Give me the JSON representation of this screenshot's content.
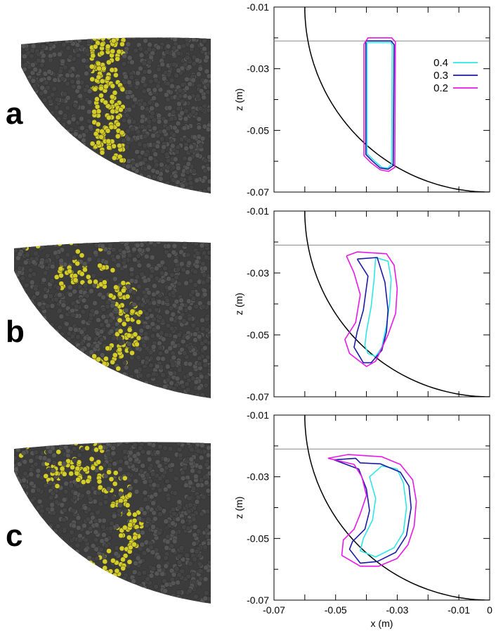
{
  "figure": {
    "panel_letters": [
      "a",
      "b",
      "c"
    ],
    "particle_colors": {
      "bed": "#4a4a4a",
      "tracer": "#d4cc28"
    }
  },
  "colors": {
    "c04": "#2ee6e6",
    "c03": "#1a1aa6",
    "c02": "#e619e6",
    "axis": "#000000",
    "surface": "#888888"
  },
  "chart_data": [
    {
      "type": "line",
      "panel": "a",
      "xlabel": "",
      "ylabel": "z (m)",
      "xlim": [
        -0.07,
        0
      ],
      "ylim": [
        -0.07,
        -0.01
      ],
      "yticks": [
        "-0.01",
        "-0.03",
        "-0.05",
        "-0.07"
      ],
      "xticks": [],
      "legend": [
        {
          "label": "0.4",
          "color": "#2ee6e6"
        },
        {
          "label": "0.3",
          "color": "#1a1aa6"
        },
        {
          "label": "0.2",
          "color": "#e619e6"
        }
      ],
      "legend_position": "top-right",
      "surface_z": -0.021,
      "drum_circle": {
        "center": [
          0,
          -0.01
        ],
        "radius": 0.06
      },
      "series": [
        {
          "name": "0.4",
          "color": "#2ee6e6",
          "x": [
            -0.0398,
            -0.032,
            -0.0316,
            -0.0318,
            -0.033,
            -0.035,
            -0.0375,
            -0.0398,
            -0.0398
          ],
          "z": [
            -0.0215,
            -0.0215,
            -0.0225,
            -0.061,
            -0.0622,
            -0.062,
            -0.0598,
            -0.0575,
            -0.0215
          ]
        },
        {
          "name": "0.3",
          "color": "#1a1aa6",
          "x": [
            -0.0402,
            -0.032,
            -0.031,
            -0.0313,
            -0.033,
            -0.0355,
            -0.038,
            -0.0402,
            -0.0402
          ],
          "z": [
            -0.021,
            -0.021,
            -0.0222,
            -0.0614,
            -0.0626,
            -0.0622,
            -0.06,
            -0.0578,
            -0.021
          ]
        },
        {
          "name": "0.2",
          "color": "#e619e6",
          "x": [
            -0.0408,
            -0.0395,
            -0.0318,
            -0.0306,
            -0.0308,
            -0.0328,
            -0.0355,
            -0.0385,
            -0.0408,
            -0.0408
          ],
          "z": [
            -0.022,
            -0.02,
            -0.02,
            -0.0213,
            -0.062,
            -0.0633,
            -0.0628,
            -0.0605,
            -0.0582,
            -0.022
          ]
        }
      ]
    },
    {
      "type": "line",
      "panel": "b",
      "xlabel": "",
      "ylabel": "z (m)",
      "xlim": [
        -0.07,
        0
      ],
      "ylim": [
        -0.07,
        -0.01
      ],
      "yticks": [
        "-0.01",
        "-0.03",
        "-0.05",
        "-0.07"
      ],
      "xticks": [],
      "surface_z": -0.021,
      "drum_circle": {
        "center": [
          0,
          -0.01
        ],
        "radius": 0.06
      },
      "series": [
        {
          "name": "0.4",
          "color": "#2ee6e6",
          "x": [
            -0.037,
            -0.033,
            -0.032,
            -0.0325,
            -0.0335,
            -0.035,
            -0.037,
            -0.0395,
            -0.0405,
            -0.04,
            -0.0385,
            -0.0375,
            -0.037
          ],
          "z": [
            -0.025,
            -0.0262,
            -0.032,
            -0.04,
            -0.047,
            -0.054,
            -0.057,
            -0.056,
            -0.0535,
            -0.049,
            -0.041,
            -0.032,
            -0.025
          ]
        },
        {
          "name": "0.3",
          "color": "#1a1aa6",
          "x": [
            -0.043,
            -0.0365,
            -0.034,
            -0.033,
            -0.0335,
            -0.035,
            -0.0385,
            -0.041,
            -0.044,
            -0.043,
            -0.041,
            -0.0395,
            -0.043
          ],
          "z": [
            -0.0255,
            -0.025,
            -0.033,
            -0.042,
            -0.049,
            -0.055,
            -0.059,
            -0.059,
            -0.054,
            -0.049,
            -0.042,
            -0.031,
            -0.0255
          ]
        },
        {
          "name": "0.2",
          "color": "#e619e6",
          "x": [
            -0.0465,
            -0.043,
            -0.0335,
            -0.031,
            -0.03,
            -0.0305,
            -0.033,
            -0.037,
            -0.04,
            -0.0455,
            -0.047,
            -0.0435,
            -0.042,
            -0.044,
            -0.0465
          ],
          "z": [
            -0.0245,
            -0.0232,
            -0.0238,
            -0.0275,
            -0.035,
            -0.043,
            -0.05,
            -0.0585,
            -0.0602,
            -0.056,
            -0.0515,
            -0.046,
            -0.037,
            -0.03,
            -0.0245
          ]
        }
      ]
    },
    {
      "type": "line",
      "panel": "c",
      "xlabel": "x (m)",
      "ylabel": "z (m)",
      "xlim": [
        -0.07,
        0
      ],
      "ylim": [
        -0.07,
        -0.01
      ],
      "yticks": [
        "-0.01",
        "-0.03",
        "-0.05",
        "-0.07"
      ],
      "xticks": [
        "-0.07",
        "-0.05",
        "-0.03",
        "-0.01",
        "0"
      ],
      "surface_z": -0.021,
      "drum_circle": {
        "center": [
          0,
          -0.01
        ],
        "radius": 0.06
      },
      "series": [
        {
          "name": "0.4",
          "color": "#2ee6e6",
          "x": [
            -0.035,
            -0.03,
            -0.028,
            -0.027,
            -0.028,
            -0.031,
            -0.037,
            -0.042,
            -0.041,
            -0.038,
            -0.037,
            -0.039,
            -0.035
          ],
          "z": [
            -0.0265,
            -0.0275,
            -0.032,
            -0.04,
            -0.048,
            -0.053,
            -0.056,
            -0.054,
            -0.05,
            -0.044,
            -0.037,
            -0.03,
            -0.0265
          ]
        },
        {
          "name": "0.3",
          "color": "#1a1aa6",
          "x": [
            -0.0505,
            -0.0435,
            -0.042,
            -0.0355,
            -0.029,
            -0.0262,
            -0.0255,
            -0.027,
            -0.0305,
            -0.0365,
            -0.042,
            -0.0455,
            -0.0445,
            -0.0405,
            -0.039,
            -0.04,
            -0.0425,
            -0.0505
          ],
          "z": [
            -0.0245,
            -0.024,
            -0.0255,
            -0.0258,
            -0.0285,
            -0.033,
            -0.04,
            -0.049,
            -0.0545,
            -0.0575,
            -0.058,
            -0.0535,
            -0.051,
            -0.047,
            -0.041,
            -0.034,
            -0.0275,
            -0.0245
          ]
        },
        {
          "name": "0.2",
          "color": "#e619e6",
          "x": [
            -0.0525,
            -0.046,
            -0.035,
            -0.029,
            -0.025,
            -0.0238,
            -0.0245,
            -0.0265,
            -0.03,
            -0.036,
            -0.042,
            -0.048,
            -0.0475,
            -0.044,
            -0.042,
            -0.04,
            -0.0415,
            -0.044,
            -0.0525
          ],
          "z": [
            -0.024,
            -0.0228,
            -0.0235,
            -0.026,
            -0.031,
            -0.038,
            -0.046,
            -0.052,
            -0.0565,
            -0.059,
            -0.059,
            -0.0555,
            -0.0505,
            -0.047,
            -0.042,
            -0.036,
            -0.03,
            -0.026,
            -0.024
          ]
        }
      ]
    }
  ]
}
